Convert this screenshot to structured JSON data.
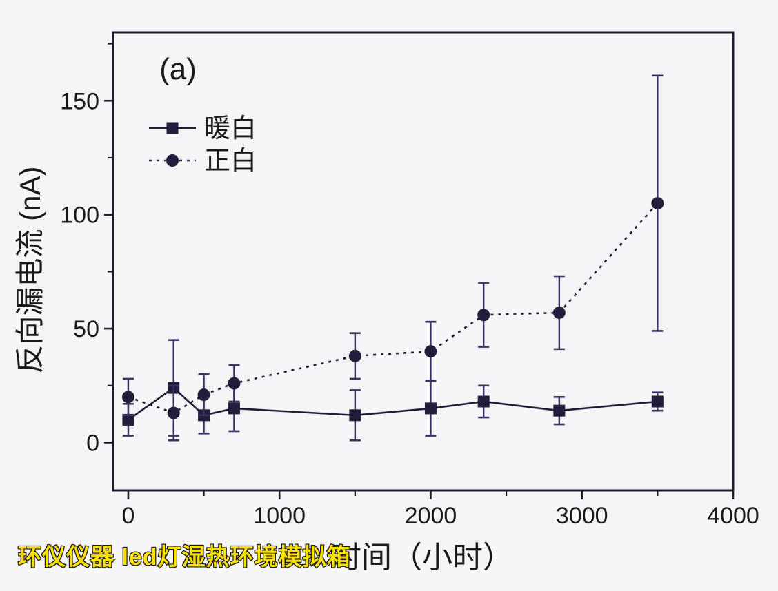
{
  "figure": {
    "panel_label": "(a)",
    "watermark": "环仪仪器 led灯湿热环境模拟箱"
  },
  "axes": {
    "x_label": "时间（小时）",
    "y_label": "反向漏电流 (nA)",
    "x_ticks": [
      0,
      1000,
      2000,
      3000,
      4000
    ],
    "x_minor_ticks": [
      500,
      1500,
      2500,
      3500
    ],
    "y_ticks": [
      0,
      50,
      100,
      150
    ],
    "y_minor_ticks": [
      25,
      75,
      125,
      175
    ],
    "x_range": [
      -100,
      4000
    ],
    "y_range": [
      -21,
      180
    ],
    "grid": "off",
    "legend_position": "upper-left-inside"
  },
  "chart_data": {
    "type": "line",
    "title": "",
    "xlabel": "时间（小时）",
    "ylabel": "反向漏电流 (nA)",
    "x": [
      0,
      300,
      500,
      700,
      1500,
      2000,
      2350,
      2850,
      3500
    ],
    "series": [
      {
        "name": "暖白",
        "marker": "square",
        "line_style": "solid",
        "values": [
          10,
          24,
          12,
          15,
          12,
          15,
          18,
          14,
          18
        ],
        "errors": [
          7,
          21,
          8,
          10,
          11,
          12,
          7,
          6,
          4
        ]
      },
      {
        "name": "正白",
        "marker": "circle",
        "line_style": "dotted",
        "values": [
          20,
          13,
          21,
          26,
          38,
          40,
          56,
          57,
          105
        ],
        "errors": [
          8,
          12,
          9,
          8,
          10,
          13,
          14,
          16,
          56
        ]
      }
    ]
  },
  "colors": {
    "background": "#f5f4f6",
    "frame": "#1d1b30",
    "series_line": "#211d3a",
    "error_bar": "#3b3263",
    "text": "#1a1a1a",
    "watermark_fill": "#f8df00",
    "watermark_stroke": "#15151a"
  }
}
